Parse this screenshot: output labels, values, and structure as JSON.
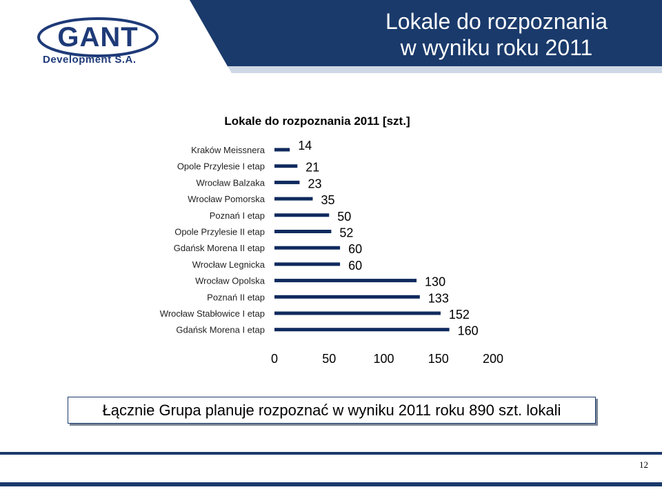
{
  "header": {
    "logo_text": "GANT",
    "logo_subtitle": "Development S.A.",
    "title_line1": "Lokale do rozpoznania",
    "title_line2": "w wyniku roku 2011"
  },
  "colors": {
    "header_blue": "#1a3a6b",
    "logo_blue": "#1e3a78",
    "bar_color": "#0f2a5e",
    "footer_bar": "#1a3a6b"
  },
  "chart_data": {
    "type": "bar",
    "orientation": "horizontal",
    "title": "Lokale do rozpoznania 2011 [szt.]",
    "categories": [
      "Kraków Meissnera",
      "Opole Przylesie I etap",
      "Wrocław Balzaka",
      "Wrocław Pomorska",
      "Poznań I etap",
      "Opole Przylesie II etap",
      "Gdańsk Morena II etap",
      "Wrocław Legnicka",
      "Wrocław Opolska",
      "Poznań II etap",
      "Wrocław Stabłowice I etap",
      "Gdańsk Morena I etap"
    ],
    "values": [
      14,
      21,
      23,
      35,
      50,
      52,
      60,
      60,
      130,
      133,
      152,
      160
    ],
    "data_labels": [
      "14",
      "21",
      "23",
      "35",
      "50",
      "52",
      "60",
      "60",
      "130",
      "133",
      "152",
      "160"
    ],
    "xlim": [
      0,
      200
    ],
    "x_ticks": [
      "0",
      "50",
      "100",
      "150",
      "200"
    ],
    "grid": false,
    "legend": "none"
  },
  "summary": {
    "text": "Łącznie Grupa planuje rozpoznać w wyniku 2011 roku 890 szt. lokali"
  },
  "footer": {
    "page_number": "12"
  }
}
